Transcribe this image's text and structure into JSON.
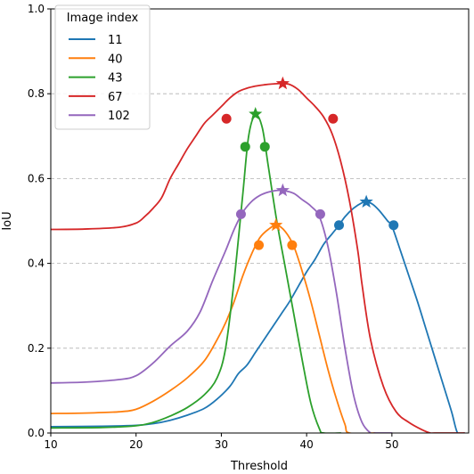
{
  "chart_data": {
    "type": "line",
    "title": "",
    "xlabel": "Threshold",
    "ylabel": "IoU",
    "xlim": [
      10,
      59
    ],
    "ylim": [
      0.0,
      1.0
    ],
    "xticks": [
      10,
      20,
      30,
      40,
      50
    ],
    "yticks": [
      0.0,
      0.2,
      0.4,
      0.6,
      0.8,
      1.0
    ],
    "xtick_labels": [
      "10",
      "20",
      "30",
      "40",
      "50"
    ],
    "ytick_labels": [
      "0.0",
      "0.2",
      "0.4",
      "0.6",
      "0.8",
      "1.0"
    ],
    "grid": "horizontal dashed",
    "legend": {
      "title": "Image index",
      "placement": "top-left",
      "entries": [
        "11",
        "40",
        "43",
        "67",
        "102"
      ]
    },
    "series": [
      {
        "name": "11",
        "color": "#1f77b4",
        "x": [
          10,
          16,
          20,
          22,
          24,
          26,
          28,
          29.5,
          31,
          32,
          33,
          34,
          35,
          36,
          37,
          38,
          39,
          40,
          41,
          42,
          43,
          43.8,
          44.5,
          45.5,
          46.5,
          47,
          47.7,
          48.5,
          49.5,
          50,
          51,
          52,
          53,
          54,
          55,
          56,
          57,
          57.7,
          58.5
        ],
        "y": [
          0.015,
          0.016,
          0.018,
          0.022,
          0.03,
          0.042,
          0.058,
          0.08,
          0.11,
          0.14,
          0.16,
          0.19,
          0.22,
          0.25,
          0.28,
          0.31,
          0.345,
          0.38,
          0.41,
          0.445,
          0.47,
          0.49,
          0.51,
          0.53,
          0.543,
          0.545,
          0.54,
          0.525,
          0.5,
          0.488,
          0.43,
          0.37,
          0.31,
          0.245,
          0.18,
          0.115,
          0.05,
          0.0,
          0.0
        ],
        "markers": [
          {
            "x": 43.8,
            "y": 0.49,
            "shape": "circle"
          },
          {
            "x": 50.2,
            "y": 0.49,
            "shape": "circle"
          },
          {
            "x": 47.0,
            "y": 0.545,
            "shape": "star"
          }
        ]
      },
      {
        "name": "40",
        "color": "#ff7f0e",
        "x": [
          10,
          14,
          18,
          20,
          22,
          24,
          26,
          28,
          29.5,
          30.5,
          31.5,
          32.5,
          33.5,
          34.5,
          35.5,
          36.5,
          37.5,
          38.5,
          39.5,
          40.5,
          41.5,
          42.5,
          43.5,
          44.5,
          45,
          48
        ],
        "y": [
          0.046,
          0.047,
          0.05,
          0.056,
          0.075,
          0.1,
          0.13,
          0.17,
          0.22,
          0.26,
          0.31,
          0.37,
          0.42,
          0.46,
          0.48,
          0.49,
          0.475,
          0.44,
          0.38,
          0.31,
          0.23,
          0.15,
          0.08,
          0.02,
          0.0,
          0.0
        ],
        "markers": [
          {
            "x": 34.4,
            "y": 0.443,
            "shape": "circle"
          },
          {
            "x": 38.3,
            "y": 0.443,
            "shape": "circle"
          },
          {
            "x": 36.4,
            "y": 0.49,
            "shape": "star"
          }
        ]
      },
      {
        "name": "43",
        "color": "#2ca02c",
        "x": [
          10,
          16,
          20,
          22,
          24,
          26,
          28,
          29.5,
          30.5,
          31.5,
          32.5,
          33.2,
          34,
          34.8,
          35.5,
          36.5,
          37.5,
          38.5,
          39.5,
          40.5,
          41.5,
          42,
          44
        ],
        "y": [
          0.012,
          0.013,
          0.017,
          0.025,
          0.04,
          0.06,
          0.09,
          0.13,
          0.2,
          0.36,
          0.56,
          0.7,
          0.75,
          0.72,
          0.63,
          0.5,
          0.39,
          0.28,
          0.17,
          0.07,
          0.01,
          0.0,
          0.0
        ],
        "markers": [
          {
            "x": 32.8,
            "y": 0.675,
            "shape": "circle"
          },
          {
            "x": 35.1,
            "y": 0.675,
            "shape": "circle"
          },
          {
            "x": 34.0,
            "y": 0.752,
            "shape": "star"
          }
        ]
      },
      {
        "name": "67",
        "color": "#d62728",
        "x": [
          10,
          14,
          18,
          20,
          21,
          22,
          23,
          24,
          25,
          26,
          27,
          28,
          29,
          30,
          31,
          32,
          33,
          34,
          35,
          36,
          37,
          38,
          39,
          40,
          41,
          42,
          43,
          44,
          45,
          46,
          46.5,
          47.5,
          49,
          50.5,
          52,
          53.5,
          54.5,
          55,
          58.5
        ],
        "y": [
          0.48,
          0.481,
          0.485,
          0.495,
          0.51,
          0.53,
          0.555,
          0.6,
          0.635,
          0.67,
          0.7,
          0.73,
          0.75,
          0.77,
          0.79,
          0.805,
          0.813,
          0.818,
          0.821,
          0.823,
          0.824,
          0.822,
          0.81,
          0.79,
          0.77,
          0.745,
          0.705,
          0.64,
          0.55,
          0.43,
          0.35,
          0.22,
          0.11,
          0.05,
          0.025,
          0.008,
          0.0,
          0.0,
          0.0
        ],
        "markers": [
          {
            "x": 30.6,
            "y": 0.741,
            "shape": "circle"
          },
          {
            "x": 43.1,
            "y": 0.741,
            "shape": "circle"
          },
          {
            "x": 37.2,
            "y": 0.824,
            "shape": "star"
          }
        ]
      },
      {
        "name": "102",
        "color": "#9467bd",
        "x": [
          10,
          14,
          18,
          20,
          22,
          24,
          26,
          27.5,
          29,
          30.5,
          31.5,
          32.5,
          33.5,
          34.5,
          35.5,
          36.5,
          37.5,
          38.5,
          39.5,
          40.5,
          41.5,
          42.5,
          43.5,
          44.5,
          45.5,
          46.5,
          47.5,
          48,
          50
        ],
        "y": [
          0.118,
          0.12,
          0.126,
          0.135,
          0.165,
          0.205,
          0.24,
          0.285,
          0.36,
          0.43,
          0.48,
          0.52,
          0.545,
          0.56,
          0.568,
          0.572,
          0.571,
          0.565,
          0.55,
          0.535,
          0.51,
          0.44,
          0.33,
          0.2,
          0.09,
          0.025,
          0.0,
          0.0,
          0.0
        ],
        "markers": [
          {
            "x": 32.3,
            "y": 0.516,
            "shape": "circle"
          },
          {
            "x": 41.6,
            "y": 0.516,
            "shape": "circle"
          },
          {
            "x": 37.2,
            "y": 0.572,
            "shape": "star"
          }
        ]
      }
    ]
  }
}
